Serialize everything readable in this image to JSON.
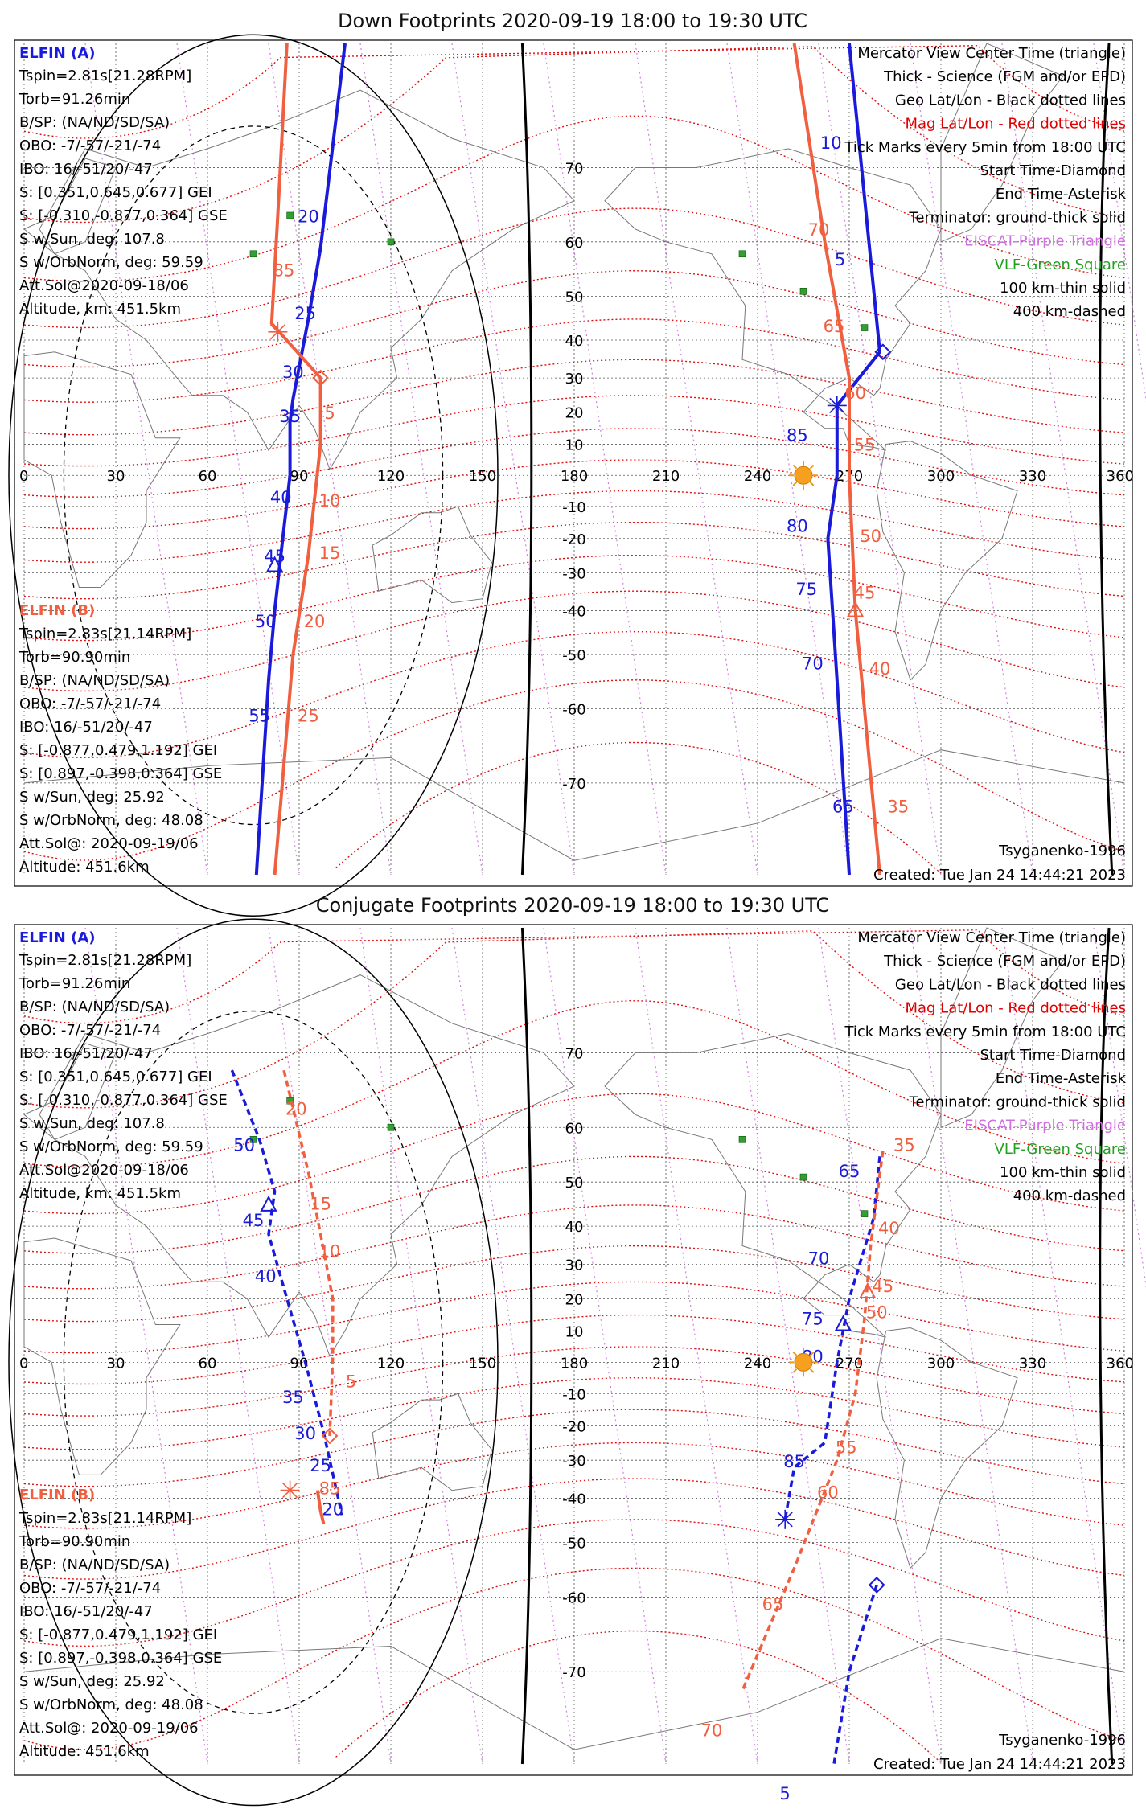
{
  "chart_data": [
    {
      "type": "line",
      "title": "Down Footprints 2020-09-19 18:00 to 19:30 UTC",
      "map": {
        "projection": "Mercator",
        "lon_ticks": [
          0,
          30,
          60,
          90,
          120,
          150,
          180,
          210,
          240,
          270,
          300,
          330,
          360
        ],
        "lat_ticks": [
          70,
          60,
          50,
          40,
          30,
          20,
          10,
          -10,
          -20,
          -30,
          -40,
          -50,
          -60,
          -70
        ],
        "xlim": [
          0,
          360
        ],
        "ylim": [
          -78,
          80
        ]
      },
      "elfin_a": {
        "label": "ELFIN (A)",
        "color": "#1a1adb",
        "info": [
          "Tspin=2.81s[21.28RPM]",
          "Torb=91.26min",
          "B/SP: (NA/ND/SD/SA)",
          "OBO: -7/-57/-21/-74",
          "IBO: 16/-51/20/-47",
          "S: [0.351,0.645,0.677] GEI",
          "S: [-0.310,-0.877,0.364] GSE",
          "S w/Sun, deg: 107.8",
          "S w/OrbNorm, deg: 59.59",
          "Att.Sol@2020-09-18/06",
          "Altitude, km: 451.5km"
        ]
      },
      "elfin_b": {
        "label": "ELFIN (B)",
        "color": "#f06040",
        "info": [
          "Tspin=2.83s[21.14RPM]",
          "Torb=90.90min",
          "B/SP: (NA/ND/SD/SA)",
          "OBO: -7/-57/-21/-74",
          "IBO: 16/-51/20/-47",
          "S: [-0.877,0.479,1.192] GEI",
          "S: [0.897,-0.398,0.364] GSE",
          "S w/Sun, deg: 25.92",
          "S w/OrbNorm, deg: 48.08",
          "Att.Sol@: 2020-09-19/06",
          "Altitude: 451.6km"
        ]
      },
      "legend": [
        {
          "text": "Mercator View Center Time (triangle)",
          "color": "#000000"
        },
        {
          "text": "Thick - Science (FGM and/or EPD)",
          "color": "#000000"
        },
        {
          "text": "Geo Lat/Lon - Black dotted lines",
          "color": "#000000"
        },
        {
          "text": "Mag Lat/Lon - Red dotted lines",
          "color": "#e00000"
        },
        {
          "text": "Tick Marks every 5min from 18:00 UTC",
          "color": "#000000"
        },
        {
          "text": "Start Time-Diamond",
          "color": "#000000"
        },
        {
          "text": "End Time-Asterisk",
          "color": "#000000"
        },
        {
          "text": "Terminator: ground-thick solid",
          "color": "#000000"
        },
        {
          "text": "EISCAT-Purple Triangle",
          "color": "#d070e0"
        },
        {
          "text": "VLF-Green Square",
          "color": "#20a020"
        },
        {
          "text": "100 km-thin solid",
          "color": "#000000"
        },
        {
          "text": "400 km-dashed",
          "color": "#000000"
        }
      ],
      "footer_left": "",
      "footer_right": [
        "Tsyganenko-1996",
        "Created: Tue Jan 24 14:44:21 2023"
      ],
      "series": [
        {
          "name": "ELFIN (A)",
          "style": "solid",
          "color": "#1a1adb",
          "points": [
            [
              105,
              80
            ],
            [
              97,
              59
            ],
            [
              93,
              45
            ],
            [
              88,
              24
            ],
            [
              87,
              17
            ],
            [
              87,
              0
            ],
            [
              84,
              -25
            ],
            [
              82,
              -40
            ],
            [
              80,
              -55
            ],
            [
              76,
              -78
            ]
          ],
          "tick_labels": [
            {
              "t": "20",
              "lon": 93,
              "lat": 63
            },
            {
              "t": "25",
              "lon": 92,
              "lat": 45
            },
            {
              "t": "30",
              "lon": 88,
              "lat": 30
            },
            {
              "t": "35",
              "lon": 87,
              "lat": 17
            },
            {
              "t": "40",
              "lon": 84,
              "lat": -9
            },
            {
              "t": "45",
              "lon": 82,
              "lat": -27
            },
            {
              "t": "50",
              "lon": 79,
              "lat": -44
            },
            {
              "t": "55",
              "lon": 77,
              "lat": -62
            }
          ]
        },
        {
          "name": "ELFIN (B)",
          "style": "solid",
          "color": "#f06040",
          "points": [
            [
              86,
              80
            ],
            [
              83,
              64
            ],
            [
              81,
              44
            ],
            [
              97,
              30
            ],
            [
              97,
              10
            ],
            [
              93,
              -25
            ],
            [
              88,
              -50
            ],
            [
              82,
              -78
            ]
          ],
          "tick_labels": [
            {
              "t": "85",
              "lon": 85,
              "lat": 54
            },
            {
              "t": "5",
              "lon": 100,
              "lat": 18
            },
            {
              "t": "10",
              "lon": 100,
              "lat": -10
            },
            {
              "t": "15",
              "lon": 100,
              "lat": -26
            },
            {
              "t": "20",
              "lon": 95,
              "lat": -44
            },
            {
              "t": "25",
              "lon": 93,
              "lat": -62
            }
          ]
        },
        {
          "name": "ELFIN (A) east",
          "style": "solid",
          "color": "#1a1adb",
          "points": [
            [
              270,
              80
            ],
            [
              280,
              37
            ],
            [
              266,
              22
            ],
            [
              266,
              0
            ],
            [
              263,
              -20
            ],
            [
              266,
              -55
            ],
            [
              270,
              -78
            ]
          ],
          "tick_labels": [
            {
              "t": "10",
              "lon": 264,
              "lat": 72
            },
            {
              "t": "5",
              "lon": 267,
              "lat": 56
            },
            {
              "t": "85",
              "lon": 253,
              "lat": 11
            },
            {
              "t": "80",
              "lon": 253,
              "lat": -18
            },
            {
              "t": "75",
              "lon": 256,
              "lat": -36
            },
            {
              "t": "70",
              "lon": 258,
              "lat": -53
            },
            {
              "t": "65",
              "lon": 268,
              "lat": -73
            }
          ]
        },
        {
          "name": "ELFIN (B) east",
          "style": "solid",
          "color": "#f06040",
          "points": [
            [
              252,
              80
            ],
            [
              262,
              60
            ],
            [
              270,
              30
            ],
            [
              270,
              0
            ],
            [
              272,
              -40
            ],
            [
              280,
              -78
            ]
          ],
          "tick_labels": [
            {
              "t": "70",
              "lon": 260,
              "lat": 61
            },
            {
              "t": "65",
              "lon": 265,
              "lat": 42
            },
            {
              "t": "60",
              "lon": 272,
              "lat": 24
            },
            {
              "t": "55",
              "lon": 275,
              "lat": 8
            },
            {
              "t": "50",
              "lon": 277,
              "lat": -21
            },
            {
              "t": "45",
              "lon": 275,
              "lat": -37
            },
            {
              "t": "40",
              "lon": 280,
              "lat": -54
            },
            {
              "t": "35",
              "lon": 286,
              "lat": -73
            }
          ]
        }
      ]
    },
    {
      "type": "line",
      "title": "Conjugate Footprints 2020-09-19 18:00 to 19:30 UTC",
      "map": {
        "projection": "Mercator",
        "lon_ticks": [
          0,
          30,
          60,
          90,
          120,
          150,
          180,
          210,
          240,
          270,
          300,
          330,
          360
        ],
        "lat_ticks": [
          70,
          60,
          50,
          40,
          30,
          20,
          10,
          -10,
          -20,
          -30,
          -40,
          -50,
          -60,
          -70
        ],
        "xlim": [
          0,
          360
        ],
        "ylim": [
          -78,
          80
        ]
      },
      "elfin_a": {
        "label": "ELFIN (A)",
        "color": "#1a1adb",
        "info": [
          "Tspin=2.81s[21.28RPM]",
          "Torb=91.26min",
          "B/SP: (NA/ND/SD/SA)",
          "OBO: -7/-57/-21/-74",
          "IBO: 16/-51/20/-47",
          "S: [0.351,0.645,0.677] GEI",
          "S: [-0.310,-0.877,0.364] GSE",
          "S w/Sun, deg: 107.8",
          "S w/OrbNorm, deg: 59.59",
          "Att.Sol@2020-09-18/06",
          "Altitude, km: 451.5km"
        ]
      },
      "elfin_b": {
        "label": "ELFIN (B)",
        "color": "#f06040",
        "info": [
          "Tspin=2.83s[21.14RPM]",
          "Torb=90.90min",
          "B/SP: (NA/ND/SD/SA)",
          "OBO: -7/-57/-21/-74",
          "IBO: 16/-51/20/-47",
          "S: [-0.877,0.479,1.192] GEI",
          "S: [0.897,-0.398,0.364] GSE",
          "S w/Sun, deg: 25.92",
          "S w/OrbNorm, deg: 48.08",
          "Att.Sol@: 2020-09-19/06",
          "Altitude: 451.6km"
        ]
      },
      "legend": [
        {
          "text": "Mercator View Center Time (triangle)",
          "color": "#000000"
        },
        {
          "text": "Thick - Science (FGM and/or EPD)",
          "color": "#000000"
        },
        {
          "text": "Geo Lat/Lon - Black dotted lines",
          "color": "#000000"
        },
        {
          "text": "Mag Lat/Lon - Red dotted lines",
          "color": "#e00000"
        },
        {
          "text": "Tick Marks every 5min from 18:00 UTC",
          "color": "#000000"
        },
        {
          "text": "Start Time-Diamond",
          "color": "#000000"
        },
        {
          "text": "End Time-Asterisk",
          "color": "#000000"
        },
        {
          "text": "Terminator: ground-thick solid",
          "color": "#000000"
        },
        {
          "text": "EISCAT-Purple Triangle",
          "color": "#d070e0"
        },
        {
          "text": "VLF-Green Square",
          "color": "#20a020"
        },
        {
          "text": "100 km-thin solid",
          "color": "#000000"
        },
        {
          "text": "400 km-dashed",
          "color": "#000000"
        }
      ],
      "footer_left": "5",
      "footer_right": [
        "Tsyganenko-1996",
        "Created: Tue Jan 24 14:44:21 2023"
      ],
      "series": [
        {
          "name": "ELFIN (A)",
          "style": "dashed",
          "color": "#1a1adb",
          "points": [
            [
              68,
              68
            ],
            [
              77,
              58
            ],
            [
              82,
              48
            ],
            [
              80,
              38
            ],
            [
              86,
              20
            ],
            [
              92,
              0
            ],
            [
              98,
              -22
            ],
            [
              104,
              -44
            ]
          ],
          "tick_labels": [
            {
              "t": "50",
              "lon": 72,
              "lat": 56
            },
            {
              "t": "45",
              "lon": 75,
              "lat": 40
            },
            {
              "t": "40",
              "lon": 79,
              "lat": 25
            },
            {
              "t": "35",
              "lon": 88,
              "lat": -13
            },
            {
              "t": "30",
              "lon": 92,
              "lat": -24
            },
            {
              "t": "25",
              "lon": 97,
              "lat": -33
            },
            {
              "t": "20",
              "lon": 101,
              "lat": -44
            }
          ]
        },
        {
          "name": "ELFIN (B)",
          "style": "dashed",
          "color": "#f06040",
          "points": [
            [
              85,
              68
            ],
            [
              93,
              52
            ],
            [
              97,
              38
            ],
            [
              101,
              20
            ],
            [
              101,
              2
            ],
            [
              100,
              -23
            ]
          ],
          "tick_labels": [
            {
              "t": "20",
              "lon": 89,
              "lat": 62
            },
            {
              "t": "15",
              "lon": 97,
              "lat": 44
            },
            {
              "t": "10",
              "lon": 100,
              "lat": 32
            },
            {
              "t": "5",
              "lon": 107,
              "lat": -8
            },
            {
              "t": "85",
              "lon": 100,
              "lat": -39
            }
          ]
        },
        {
          "name": "ELFIN (B) south",
          "style": "solid",
          "color": "#f06040",
          "points": [
            [
              96,
              -38
            ],
            [
              97,
              -43
            ],
            [
              98,
              -46
            ]
          ],
          "tick_labels": []
        },
        {
          "name": "ELFIN (A) east",
          "style": "dashed",
          "color": "#1a1adb",
          "points": [
            [
              280,
              55
            ],
            [
              278,
              42
            ],
            [
              270,
              20
            ],
            [
              266,
              0
            ],
            [
              262,
              -25
            ],
            [
              252,
              -32
            ],
            [
              249,
              -45
            ]
          ],
          "tick_labels": [
            {
              "t": "65",
              "lon": 270,
              "lat": 51
            },
            {
              "t": "70",
              "lon": 260,
              "lat": 30
            },
            {
              "t": "75",
              "lon": 258,
              "lat": 12
            },
            {
              "t": "80",
              "lon": 258,
              "lat": 0
            },
            {
              "t": "85",
              "lon": 252,
              "lat": -32
            }
          ]
        },
        {
          "name": "ELFIN (B) east",
          "style": "dashed",
          "color": "#f06040",
          "points": [
            [
              281,
              56
            ],
            [
              277,
              35
            ],
            [
              275,
              14
            ],
            [
              272,
              -10
            ],
            [
              266,
              -30
            ],
            [
              252,
              -55
            ],
            [
              235,
              -72
            ]
          ],
          "tick_labels": [
            {
              "t": "35",
              "lon": 288,
              "lat": 56
            },
            {
              "t": "40",
              "lon": 283,
              "lat": 38
            },
            {
              "t": "45",
              "lon": 281,
              "lat": 22
            },
            {
              "t": "50",
              "lon": 279,
              "lat": 14
            },
            {
              "t": "55",
              "lon": 269,
              "lat": -28
            },
            {
              "t": "60",
              "lon": 263,
              "lat": -40
            },
            {
              "t": "65",
              "lon": 245,
              "lat": -62
            },
            {
              "t": "70",
              "lon": 225,
              "lat": -76
            }
          ]
        },
        {
          "name": "ELFIN (A) south",
          "style": "dashed",
          "color": "#1a1adb",
          "points": [
            [
              279,
              -58
            ],
            [
              270,
              -70
            ],
            [
              265,
              -78
            ]
          ],
          "tick_labels": []
        }
      ]
    }
  ]
}
